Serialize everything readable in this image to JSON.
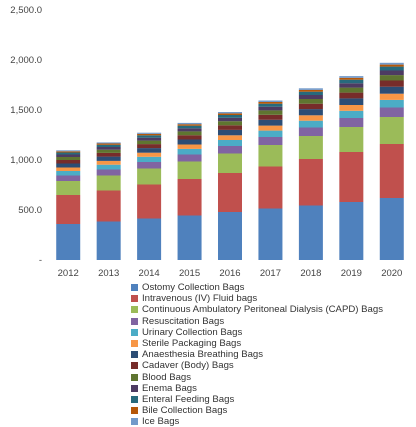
{
  "chart_data": {
    "type": "bar",
    "stacked": true,
    "title": "",
    "xlabel": "",
    "ylabel": "",
    "categories": [
      "2012",
      "2013",
      "2014",
      "2015",
      "2016",
      "2017",
      "2018",
      "2019",
      "2020"
    ],
    "ylim": [
      0,
      2500
    ],
    "yticks": [
      0,
      500,
      1000,
      1500,
      2000,
      2500
    ],
    "ytick_labels": [
      "-",
      "500.0",
      "1,000.0",
      "1,500.0",
      "2,000.0",
      "2,500.0"
    ],
    "grid": false,
    "legend_position": "bottom",
    "series": [
      {
        "name": "Ostomy Collection Bags",
        "color": "#4F81BD",
        "values": [
          360,
          385,
          415,
          445,
          480,
          515,
          545,
          580,
          620
        ]
      },
      {
        "name": "Intravenous (IV) Fluid bags",
        "color": "#C0504D",
        "values": [
          290,
          310,
          340,
          365,
          390,
          420,
          465,
          500,
          540
        ]
      },
      {
        "name": "Continuous Ambulatory Peritoneal Dialysis (CAPD) Bags",
        "color": "#9BBB59",
        "values": [
          140,
          150,
          160,
          175,
          195,
          215,
          230,
          250,
          270
        ]
      },
      {
        "name": "Resuscitation Bags",
        "color": "#8064A2",
        "values": [
          55,
          60,
          65,
          70,
          75,
          80,
          85,
          90,
          95
        ]
      },
      {
        "name": "Urinary Collection Bags",
        "color": "#4BACC6",
        "values": [
          45,
          48,
          52,
          56,
          60,
          64,
          68,
          72,
          76
        ]
      },
      {
        "name": "Sterile Packaging Bags",
        "color": "#F79646",
        "values": [
          35,
          38,
          41,
          44,
          47,
          50,
          54,
          58,
          62
        ]
      },
      {
        "name": "Anaesthesia Breathing Bags",
        "color": "#2C4D75",
        "values": [
          40,
          43,
          46,
          50,
          54,
          58,
          62,
          66,
          70
        ]
      },
      {
        "name": "Cadaver (Body) Bags",
        "color": "#772C2A",
        "values": [
          35,
          37,
          40,
          43,
          46,
          50,
          54,
          58,
          62
        ]
      },
      {
        "name": "Blood Bags",
        "color": "#5F7530",
        "values": [
          30,
          32,
          35,
          38,
          41,
          44,
          47,
          50,
          54
        ]
      },
      {
        "name": "Enema Bags",
        "color": "#4D3B62",
        "values": [
          25,
          27,
          29,
          31,
          34,
          37,
          40,
          43,
          46
        ]
      },
      {
        "name": "Enteral Feeding Bags",
        "color": "#276A7C",
        "values": [
          20,
          22,
          24,
          26,
          28,
          30,
          33,
          36,
          39
        ]
      },
      {
        "name": "Bile Collection Bags",
        "color": "#B65708",
        "values": [
          12,
          13,
          14,
          15,
          16,
          17,
          18,
          19,
          20
        ]
      },
      {
        "name": "Ice Bags",
        "color": "#729ACA",
        "values": [
          10,
          11,
          12,
          13,
          14,
          15,
          16,
          17,
          18
        ]
      }
    ]
  }
}
